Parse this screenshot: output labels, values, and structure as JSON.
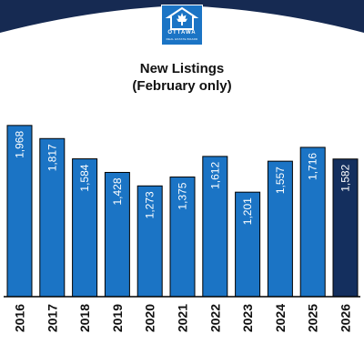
{
  "header": {
    "logo_name": "OTTAWA",
    "logo_sub": "REAL ESTATE BOARD"
  },
  "colors": {
    "header_band": "#162a52",
    "bar": "#1b74c5",
    "bar_highlight": "#142f5e",
    "bar_outline": "#000000",
    "axis": "#000000",
    "text": "#111111"
  },
  "icons": {
    "logo": "house-maple-leaf-icon"
  },
  "chart_data": {
    "type": "bar",
    "title": "New Listings",
    "subtitle": "(February only)",
    "categories": [
      "2016",
      "2017",
      "2018",
      "2019",
      "2020",
      "2021",
      "2022",
      "2023",
      "2024",
      "2025",
      "2026"
    ],
    "values": [
      1968,
      1817,
      1584,
      1428,
      1273,
      1375,
      1612,
      1201,
      1557,
      1716,
      1582
    ],
    "data_labels": [
      "1,968",
      "1,817",
      "1,584",
      "1,428",
      "1,273",
      "1,375",
      "1,612",
      "1,201",
      "1,557",
      "1,716",
      "1,582"
    ],
    "highlight_category": "2026",
    "xlabel": "",
    "ylabel": "",
    "ylim": [
      0,
      2050
    ],
    "grid": false,
    "legend": "none"
  }
}
